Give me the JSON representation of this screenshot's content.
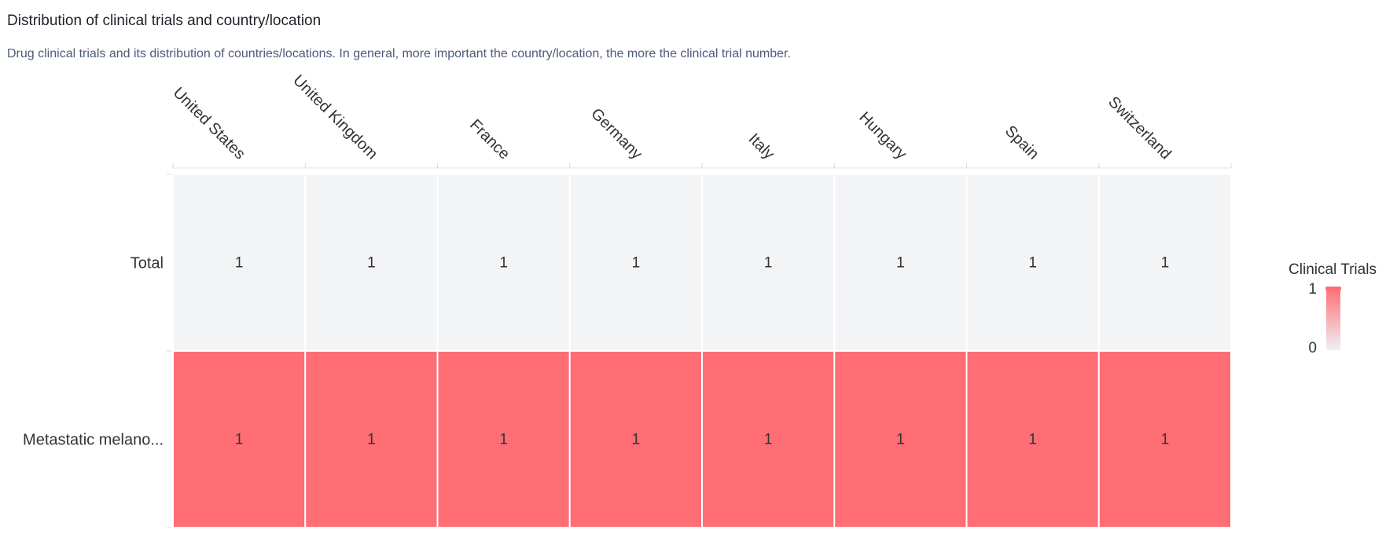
{
  "header": {
    "title": "Distribution of clinical trials and country/location",
    "subtitle": "Drug clinical trials and its distribution of countries/locations. In general, more important the country/location, the more the clinical trial number."
  },
  "chart_data": {
    "type": "heatmap",
    "x_categories": [
      "United States",
      "United Kingdom",
      "France",
      "Germany",
      "Italy",
      "Hungary",
      "Spain",
      "Switzerland"
    ],
    "y_categories": [
      "Total",
      "Metastatic melano..."
    ],
    "values": [
      [
        1,
        1,
        1,
        1,
        1,
        1,
        1,
        1
      ],
      [
        1,
        1,
        1,
        1,
        1,
        1,
        1,
        1
      ]
    ],
    "cell_colors": [
      "#f3f4f6",
      "#ff6d75"
    ],
    "legend": {
      "title": "Clinical Trials",
      "min": 0,
      "max": 1,
      "low_color": "#eef0f3",
      "high_color": "#ff6d75",
      "placement": "right"
    }
  }
}
